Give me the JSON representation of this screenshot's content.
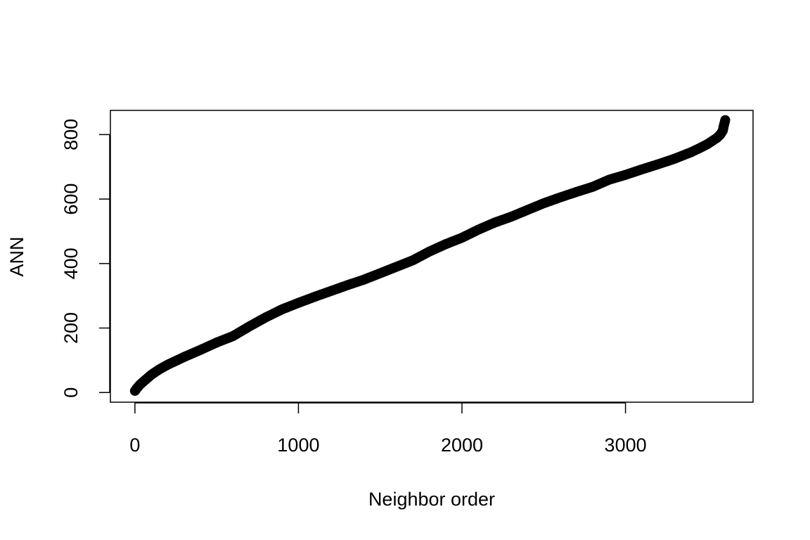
{
  "chart_data": {
    "type": "scatter",
    "title": "",
    "xlabel": "Neighbor order",
    "ylabel": "ANN",
    "xlim": [
      -150,
      3780
    ],
    "ylim": [
      -30,
      875
    ],
    "x_ticks": [
      0,
      1000,
      2000,
      3000
    ],
    "y_ticks": [
      0,
      200,
      400,
      600,
      800
    ],
    "x_tick_labels": [
      "0",
      "1000",
      "2000",
      "3000"
    ],
    "y_tick_labels": [
      "0",
      "200",
      "400",
      "600",
      "800"
    ],
    "grid": false,
    "marker": "open-circle",
    "series": [
      {
        "x": [
          0,
          5,
          10,
          20,
          30,
          50,
          75,
          100,
          150,
          200,
          250,
          300,
          400,
          500,
          600,
          700,
          800,
          900,
          1000,
          1100,
          1200,
          1300,
          1400,
          1500,
          1600,
          1700,
          1800,
          1900,
          2000,
          2100,
          2200,
          2300,
          2400,
          2500,
          2600,
          2700,
          2800,
          2900,
          3000,
          3100,
          3200,
          3300,
          3400,
          3450,
          3500,
          3530,
          3560,
          3580,
          3595,
          3600,
          3605,
          3610
        ],
        "y": [
          5,
          8,
          12,
          18,
          24,
          33,
          44,
          55,
          72,
          86,
          98,
          110,
          132,
          155,
          175,
          205,
          233,
          258,
          278,
          297,
          315,
          333,
          350,
          370,
          390,
          410,
          437,
          460,
          480,
          505,
          527,
          545,
          566,
          587,
          605,
          622,
          638,
          660,
          675,
          692,
          708,
          725,
          745,
          757,
          770,
          780,
          790,
          800,
          812,
          825,
          835,
          845
        ]
      }
    ]
  }
}
